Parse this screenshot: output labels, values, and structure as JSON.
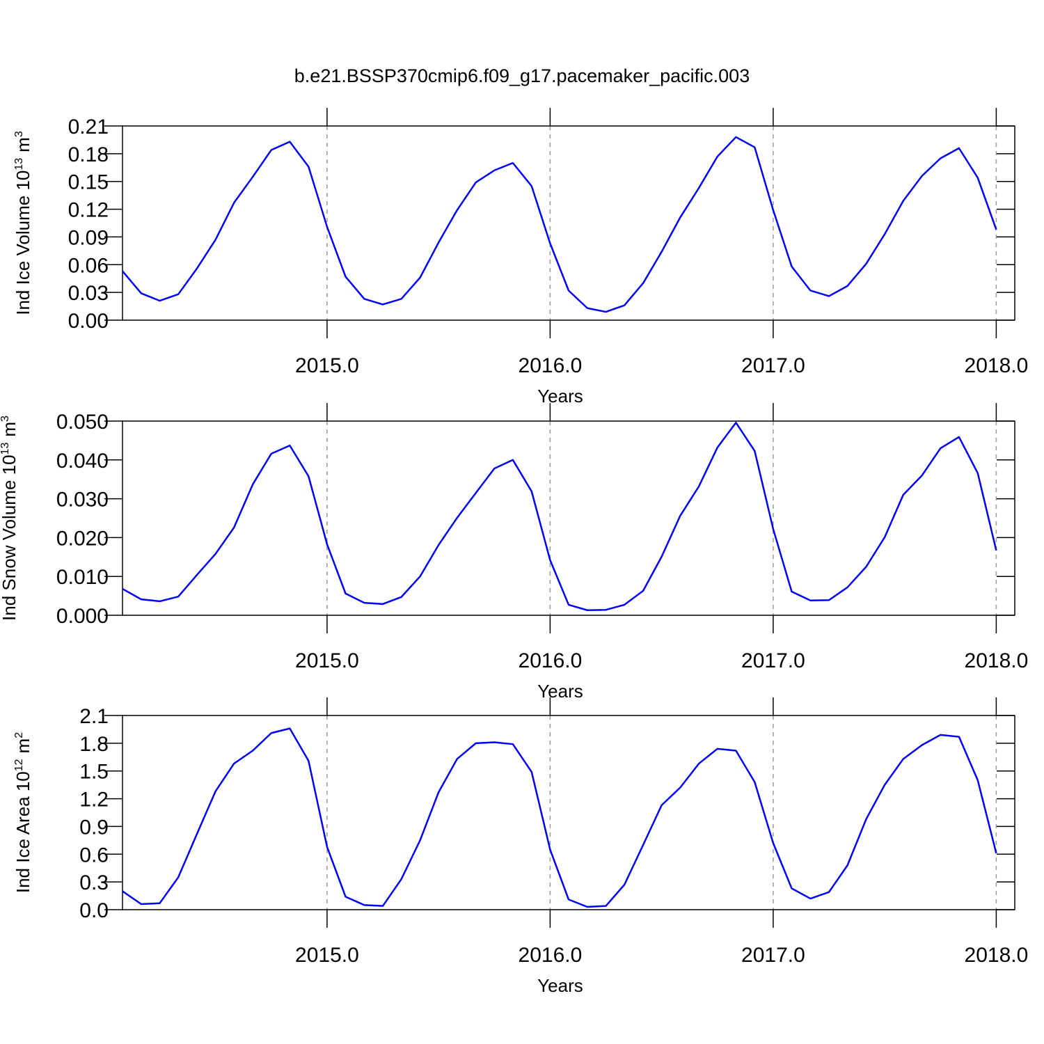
{
  "chart_data": [
    {
      "type": "line",
      "title": "b.e21.BSSP370cmip6.f09_g17.pacemaker_pacific.003",
      "ylabel": {
        "text": "Ind Ice Volume 10",
        "exponent": "13",
        "unit": "m",
        "unit_exponent": "3"
      },
      "xlabel": "Years",
      "x": [
        2014.083,
        2014.167,
        2014.25,
        2014.333,
        2014.417,
        2014.5,
        2014.583,
        2014.667,
        2014.75,
        2014.833,
        2014.917,
        2015,
        2015.083,
        2015.167,
        2015.25,
        2015.333,
        2015.417,
        2015.5,
        2015.583,
        2015.667,
        2015.75,
        2015.833,
        2015.917,
        2016,
        2016.083,
        2016.167,
        2016.25,
        2016.333,
        2016.417,
        2016.5,
        2016.583,
        2016.667,
        2016.75,
        2016.833,
        2016.917,
        2017,
        2017.083,
        2017.167,
        2017.25,
        2017.333,
        2017.417,
        2017.5,
        2017.583,
        2017.667,
        2017.75,
        2017.833,
        2017.917,
        2018
      ],
      "series": [
        {
          "color": "#0000ff",
          "values": [
            0.053,
            0.029,
            0.021,
            0.028,
            0.056,
            0.087,
            0.127,
            0.155,
            0.184,
            0.193,
            0.166,
            0.101,
            0.047,
            0.023,
            0.017,
            0.023,
            0.046,
            0.084,
            0.119,
            0.149,
            0.162,
            0.17,
            0.145,
            0.083,
            0.032,
            0.013,
            0.009,
            0.016,
            0.04,
            0.074,
            0.111,
            0.143,
            0.177,
            0.198,
            0.187,
            0.119,
            0.058,
            0.032,
            0.026,
            0.037,
            0.061,
            0.093,
            0.129,
            0.156,
            0.175,
            0.186,
            0.154,
            0.098
          ]
        }
      ],
      "xlim": [
        2014.083,
        2018.083
      ],
      "xticks": [
        {
          "value": 2015,
          "label": "2015.0"
        },
        {
          "value": 2016,
          "label": "2016.0"
        },
        {
          "value": 2017,
          "label": "2017.0"
        },
        {
          "value": 2018,
          "label": "2018.0"
        }
      ],
      "ylim": [
        0,
        0.21
      ],
      "yticks": [
        {
          "value": 0,
          "label": "0.00"
        },
        0.03,
        0.06,
        0.09,
        0.12,
        0.15,
        0.18,
        0.21
      ],
      "grid": "x-dashed"
    },
    {
      "type": "line",
      "ylabel": {
        "text": "Ind Snow Volume 10",
        "exponent": "13",
        "unit": "m",
        "unit_exponent": "3"
      },
      "xlabel": "Years",
      "x": [
        2014.083,
        2014.167,
        2014.25,
        2014.333,
        2014.417,
        2014.5,
        2014.583,
        2014.667,
        2014.75,
        2014.833,
        2014.917,
        2015,
        2015.083,
        2015.167,
        2015.25,
        2015.333,
        2015.417,
        2015.5,
        2015.583,
        2015.667,
        2015.75,
        2015.833,
        2015.917,
        2016,
        2016.083,
        2016.167,
        2016.25,
        2016.333,
        2016.417,
        2016.5,
        2016.583,
        2016.667,
        2016.75,
        2016.833,
        2016.917,
        2017,
        2017.083,
        2017.167,
        2017.25,
        2017.333,
        2017.417,
        2017.5,
        2017.583,
        2017.667,
        2017.75,
        2017.833,
        2017.917,
        2018
      ],
      "series": [
        {
          "color": "#0000ff",
          "values": [
            0.0068,
            0.0041,
            0.0036,
            0.0048,
            0.0104,
            0.0158,
            0.0226,
            0.0337,
            0.0416,
            0.0437,
            0.0358,
            0.0183,
            0.0056,
            0.0032,
            0.0029,
            0.0047,
            0.01,
            0.0181,
            0.0251,
            0.0315,
            0.0378,
            0.04,
            0.0319,
            0.0142,
            0.0027,
            0.0013,
            0.0014,
            0.0027,
            0.0063,
            0.0151,
            0.0256,
            0.0332,
            0.0432,
            0.0496,
            0.0423,
            0.0222,
            0.0061,
            0.0038,
            0.0039,
            0.0072,
            0.0125,
            0.0201,
            0.031,
            0.036,
            0.043,
            0.0459,
            0.0366,
            0.0167
          ]
        }
      ],
      "xlim": [
        2014.083,
        2018.083
      ],
      "xticks": [
        {
          "value": 2015,
          "label": "2015.0"
        },
        {
          "value": 2016,
          "label": "2016.0"
        },
        {
          "value": 2017,
          "label": "2017.0"
        },
        {
          "value": 2018,
          "label": "2018.0"
        }
      ],
      "ylim": [
        0,
        0.05
      ],
      "yticks": [
        {
          "value": 0,
          "label": "0.000"
        },
        {
          "value": 0.01,
          "label": "0.010"
        },
        {
          "value": 0.02,
          "label": "0.020"
        },
        {
          "value": 0.03,
          "label": "0.030"
        },
        {
          "value": 0.04,
          "label": "0.040"
        },
        {
          "value": 0.05,
          "label": "0.050"
        }
      ],
      "grid": "x-dashed"
    },
    {
      "type": "line",
      "ylabel": {
        "text": "Ind Ice Area 10",
        "exponent": "12",
        "unit": "m",
        "unit_exponent": "2"
      },
      "xlabel": "Years",
      "x": [
        2014.083,
        2014.167,
        2014.25,
        2014.333,
        2014.417,
        2014.5,
        2014.583,
        2014.667,
        2014.75,
        2014.833,
        2014.917,
        2015,
        2015.083,
        2015.167,
        2015.25,
        2015.333,
        2015.417,
        2015.5,
        2015.583,
        2015.667,
        2015.75,
        2015.833,
        2015.917,
        2016,
        2016.083,
        2016.167,
        2016.25,
        2016.333,
        2016.417,
        2016.5,
        2016.583,
        2016.667,
        2016.75,
        2016.833,
        2016.917,
        2017,
        2017.083,
        2017.167,
        2017.25,
        2017.333,
        2017.417,
        2017.5,
        2017.583,
        2017.667,
        2017.75,
        2017.833,
        2017.917,
        2018
      ],
      "series": [
        {
          "color": "#0000ff",
          "values": [
            0.2,
            0.06,
            0.07,
            0.35,
            0.82,
            1.28,
            1.58,
            1.72,
            1.91,
            1.96,
            1.61,
            0.68,
            0.14,
            0.05,
            0.04,
            0.33,
            0.75,
            1.27,
            1.63,
            1.8,
            1.81,
            1.79,
            1.49,
            0.65,
            0.11,
            0.03,
            0.04,
            0.27,
            0.7,
            1.13,
            1.32,
            1.58,
            1.74,
            1.72,
            1.38,
            0.72,
            0.23,
            0.12,
            0.19,
            0.48,
            0.98,
            1.35,
            1.63,
            1.78,
            1.89,
            1.87,
            1.4,
            0.61
          ]
        }
      ],
      "xlim": [
        2014.083,
        2018.083
      ],
      "xticks": [
        {
          "value": 2015,
          "label": "2015.0"
        },
        {
          "value": 2016,
          "label": "2016.0"
        },
        {
          "value": 2017,
          "label": "2017.0"
        },
        {
          "value": 2018,
          "label": "2018.0"
        }
      ],
      "ylim": [
        0,
        2.1
      ],
      "yticks": [
        {
          "value": 0,
          "label": "0.0"
        },
        0.3,
        0.6,
        0.9,
        1.2,
        1.5,
        1.8,
        2.1
      ],
      "grid": "x-dashed"
    }
  ]
}
